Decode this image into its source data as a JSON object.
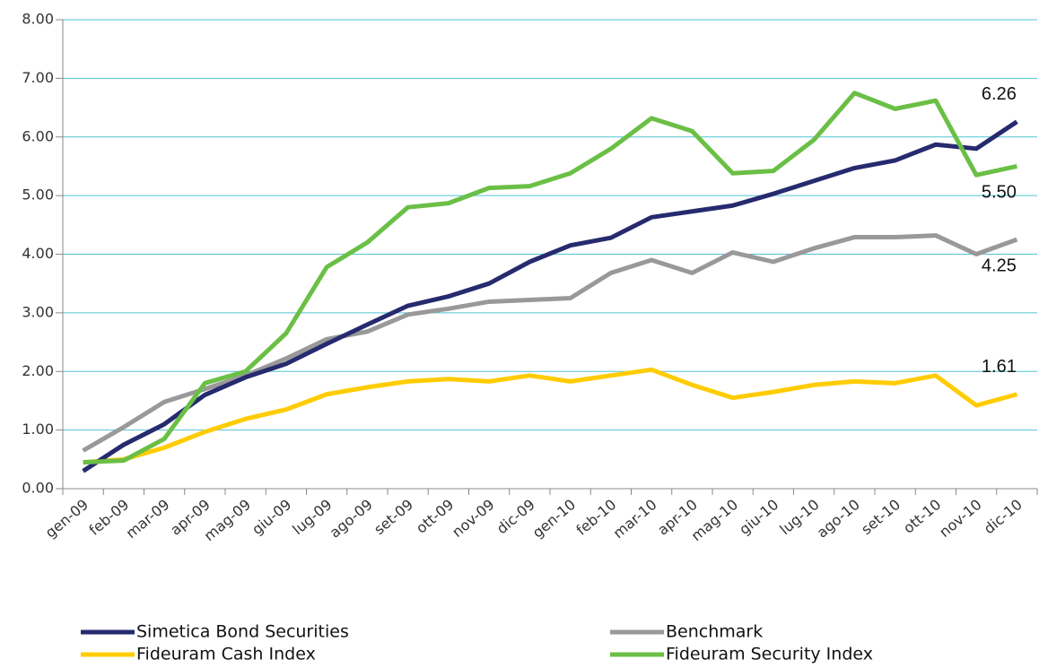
{
  "chart_data": {
    "type": "line",
    "categories": [
      "gen-09",
      "feb-09",
      "mar-09",
      "apr-09",
      "mag-09",
      "giu-09",
      "lug-09",
      "ago-09",
      "set-09",
      "ott-09",
      "nov-09",
      "dic-09",
      "gen-10",
      "feb-10",
      "mar-10",
      "apr-10",
      "mag-10",
      "giu-10",
      "lug-10",
      "ago-10",
      "set-10",
      "ott-10",
      "nov-10",
      "dic-10"
    ],
    "series": [
      {
        "name": "Simetica Bond Securities",
        "color": "#262a6e",
        "values": [
          0.3,
          0.75,
          1.1,
          1.6,
          1.9,
          2.13,
          2.47,
          2.8,
          3.12,
          3.28,
          3.5,
          3.87,
          4.15,
          4.28,
          4.63,
          4.73,
          4.83,
          5.03,
          5.25,
          5.47,
          5.6,
          5.87,
          5.8,
          6.26
        ],
        "value_labels": [
          null,
          null,
          null,
          null,
          null,
          null,
          null,
          null,
          null,
          null,
          null,
          null,
          null,
          null,
          null,
          null,
          null,
          null,
          null,
          null,
          null,
          null,
          null,
          "6.26"
        ]
      },
      {
        "name": "Benchmark",
        "color": "#999999",
        "values": [
          0.65,
          1.05,
          1.48,
          1.7,
          1.93,
          2.22,
          2.55,
          2.68,
          2.97,
          3.07,
          3.19,
          3.22,
          3.25,
          3.68,
          3.9,
          3.68,
          4.03,
          3.87,
          4.1,
          4.29,
          4.29,
          4.32,
          4.0,
          4.25
        ],
        "value_labels": [
          null,
          null,
          null,
          null,
          null,
          null,
          null,
          null,
          null,
          null,
          null,
          null,
          null,
          null,
          null,
          null,
          null,
          null,
          null,
          null,
          null,
          null,
          null,
          "4.25"
        ]
      },
      {
        "name": "Fideuram Cash Index",
        "color": "#ffcc00",
        "values": [
          0.45,
          0.5,
          0.7,
          0.97,
          1.19,
          1.35,
          1.61,
          1.73,
          1.83,
          1.87,
          1.83,
          1.93,
          1.83,
          1.93,
          2.03,
          1.77,
          1.55,
          1.65,
          1.77,
          1.83,
          1.8,
          1.93,
          1.42,
          1.61
        ],
        "value_labels": [
          null,
          null,
          null,
          null,
          null,
          null,
          null,
          null,
          null,
          null,
          null,
          null,
          null,
          null,
          null,
          null,
          null,
          null,
          null,
          null,
          null,
          null,
          null,
          "1.61"
        ]
      },
      {
        "name": "Fideuram Security Index",
        "color": "#6abf45",
        "values": [
          0.45,
          0.48,
          0.85,
          1.8,
          2.0,
          2.65,
          3.78,
          4.2,
          4.8,
          4.87,
          5.13,
          5.16,
          5.38,
          5.8,
          6.32,
          6.1,
          5.38,
          5.42,
          5.95,
          6.75,
          6.48,
          6.62,
          5.35,
          5.5
        ],
        "value_labels": [
          null,
          null,
          null,
          null,
          null,
          null,
          null,
          null,
          null,
          null,
          null,
          null,
          null,
          null,
          null,
          null,
          null,
          null,
          null,
          null,
          null,
          null,
          null,
          "5.50"
        ]
      }
    ],
    "ylim": [
      0,
      8
    ],
    "yticks": [
      {
        "value": 0,
        "label": "0.00"
      },
      {
        "value": 1,
        "label": "1.00"
      },
      {
        "value": 2,
        "label": "2.00"
      },
      {
        "value": 3,
        "label": "3.00"
      },
      {
        "value": 4,
        "label": "4.00"
      },
      {
        "value": 5,
        "label": "5.00"
      },
      {
        "value": 6,
        "label": "6.00"
      },
      {
        "value": 7,
        "label": "7.00"
      },
      {
        "value": 8,
        "label": "8.00"
      }
    ],
    "grid": true,
    "legend": "bottom"
  }
}
